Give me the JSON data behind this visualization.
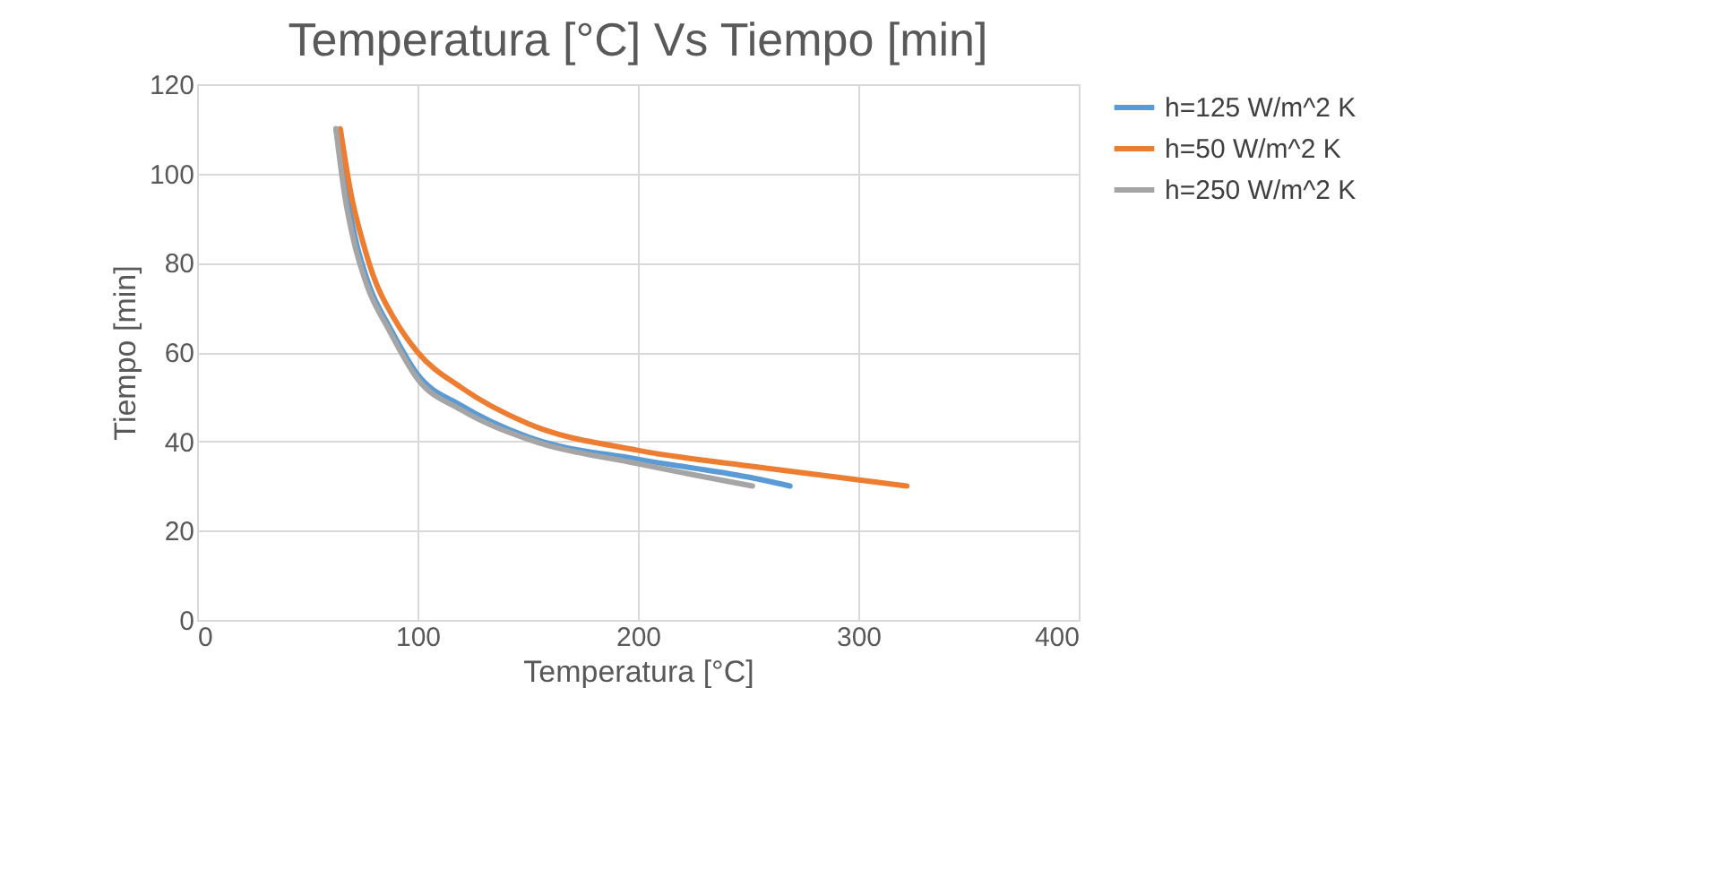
{
  "chart_data": {
    "type": "line",
    "title": "Temperatura [°C] Vs Tiempo [min]",
    "xlabel": "Temperatura [°C]",
    "ylabel": "Tiempo [min]",
    "xlim": [
      0,
      400
    ],
    "xticks": [
      0,
      100,
      200,
      300,
      400
    ],
    "ylim": [
      0,
      120
    ],
    "yticks": [
      0,
      20,
      40,
      60,
      80,
      100,
      120
    ],
    "grid": true,
    "legend": "right",
    "marker": "none",
    "line_style": "solid",
    "series": [
      {
        "name": "h=125 W/m^2 K",
        "color": "#5b9bd5",
        "x": [
          63,
          68,
          72,
          78,
          88,
          100,
          120,
          150,
          200,
          250,
          269
        ],
        "values": [
          110,
          95,
          85,
          75,
          65,
          55,
          48,
          41,
          36,
          32,
          30
        ]
      },
      {
        "name": "h=50 W/m^2 K",
        "color": "#ed7d31",
        "x": [
          65,
          70,
          75,
          80,
          90,
          100,
          120,
          150,
          200,
          250,
          322
        ],
        "values": [
          110,
          95,
          85,
          77,
          67,
          60,
          52,
          44,
          38,
          34.5,
          30
        ]
      },
      {
        "name": "h=250 W/m^2 K",
        "color": "#a5a5a5",
        "x": [
          63,
          67,
          71,
          77,
          87,
          100,
          120,
          150,
          200,
          252
        ],
        "values": [
          110,
          95,
          85,
          75,
          65,
          54,
          47,
          40.5,
          35,
          30
        ]
      }
    ]
  }
}
